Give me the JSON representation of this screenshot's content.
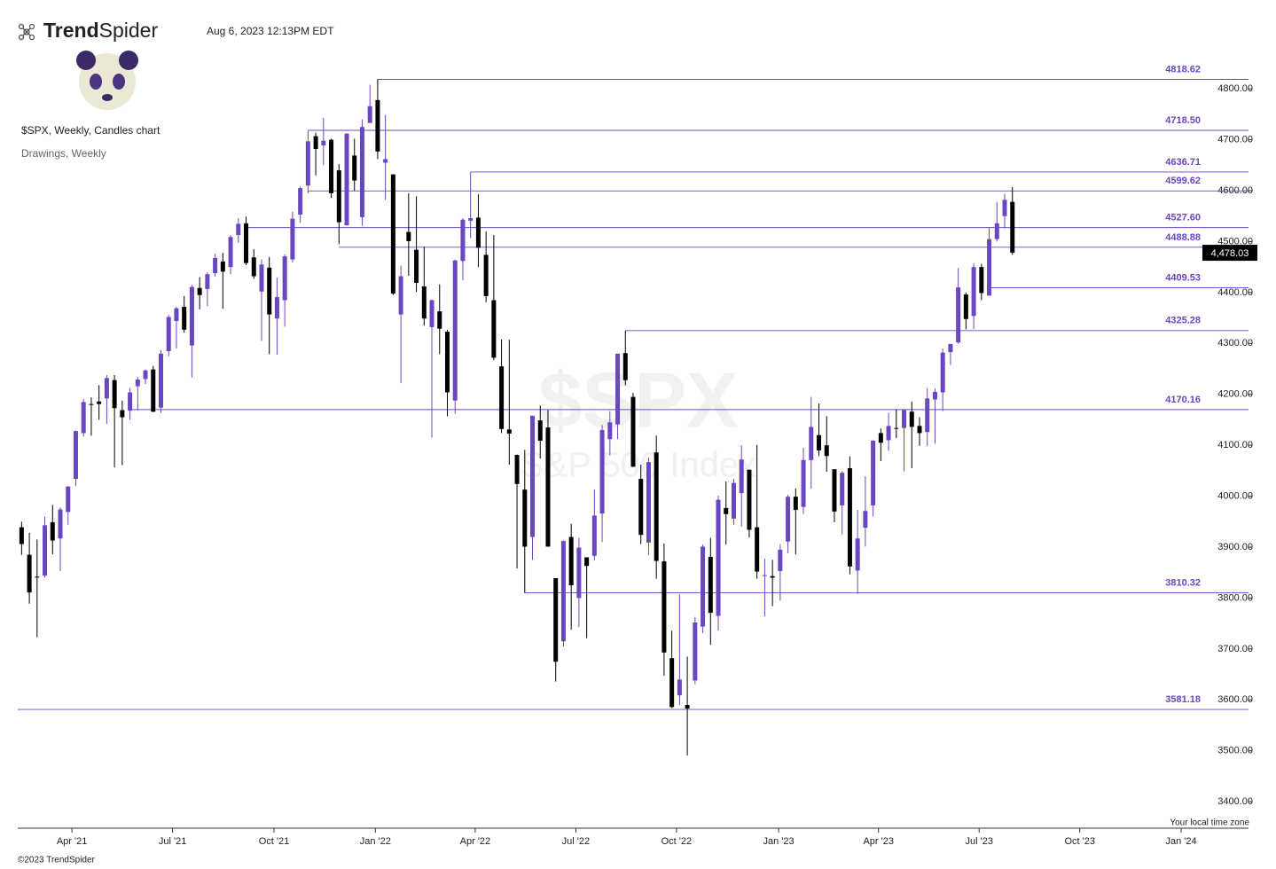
{
  "header": {
    "logo": {
      "bold": "Trend",
      "light": "Spider"
    },
    "timestamp": "Aug 6, 2023 12:13PM EDT",
    "chart_name": "$SPX, Weekly, Candles chart",
    "drawings": "Drawings, Weekly"
  },
  "footer": {
    "copyright": "©2023 TrendSpider",
    "timezone": "Your local time zone"
  },
  "chart_data": {
    "type": "candlestick",
    "watermark": {
      "symbol": "$SPX",
      "name": "S&P 500 Index"
    },
    "categories": [
      null,
      null,
      null,
      null,
      null,
      null,
      null,
      null,
      null,
      null,
      null,
      null,
      null,
      null,
      null,
      null,
      null,
      null,
      null,
      null,
      null,
      null,
      null,
      null,
      null,
      null,
      null,
      null,
      null,
      null,
      null,
      null,
      null,
      null,
      null,
      null,
      null,
      null,
      null,
      null,
      null,
      null,
      null,
      null,
      null,
      null,
      null,
      null,
      null,
      null,
      null,
      null,
      null,
      null,
      null,
      null,
      null,
      null,
      null,
      null,
      null,
      null,
      null,
      null,
      null,
      null,
      null,
      null,
      null,
      null,
      null,
      null,
      null,
      null,
      null,
      null,
      null,
      null,
      null,
      null,
      null,
      null,
      null,
      null,
      null,
      null,
      null,
      null,
      null,
      null,
      null,
      null,
      null,
      null,
      null,
      null,
      null,
      null,
      null,
      null,
      null,
      null,
      null,
      null,
      null,
      null,
      null,
      null,
      null,
      null,
      null,
      null,
      null,
      null,
      null,
      null,
      null,
      null,
      null,
      null,
      null,
      null,
      null,
      null,
      null,
      null,
      null,
      null,
      null
    ],
    "open": [
      3939,
      3885,
      3842,
      3844,
      3949,
      3917,
      3969,
      4034,
      4124,
      4181,
      4186,
      4192,
      4228,
      4169,
      4168,
      4216,
      4230,
      4249,
      4174,
      4285,
      4344,
      4372,
      4296,
      4409,
      4407,
      4438,
      4461,
      4450,
      4513,
      4536,
      4469,
      4402,
      4449,
      4349,
      4385,
      4465,
      4553,
      4610,
      4707,
      4689,
      4700,
      4640,
      4532,
      4669,
      4548,
      4733,
      4778,
      4655,
      4632,
      4357,
      4519,
      4484,
      4412,
      4332,
      4363,
      4323,
      4188,
      4462,
      4541,
      4547,
      4474,
      4385,
      4255,
      4131,
      4081,
      4013,
      3920,
      4149,
      4135,
      3839,
      3715,
      3920,
      3800,
      3880,
      3883,
      3966,
      4112,
      4141,
      4281,
      4195,
      4034,
      3909,
      4086,
      3872,
      3682,
      3609,
      3590,
      3638,
      3744,
      3881,
      3765,
      3977,
      3956,
      4006,
      4052,
      3939,
      3845,
      3843,
      3853,
      3911,
      3999,
      3979,
      4071,
      4120,
      4100,
      4053,
      3982,
      4055,
      3854,
      3938,
      3982,
      4124,
      4110,
      4134,
      4134,
      4166,
      4138,
      4126,
      4190,
      4204,
      4283,
      4302,
      4396,
      4354,
      4450,
      4394,
      4505,
      4550,
      4578
    ],
    "high": [
      3950,
      3928,
      3915,
      3960,
      3983,
      3978,
      4020,
      4129,
      4191,
      4194,
      4218,
      4238,
      4238,
      4188,
      4213,
      4234,
      4249,
      4256,
      4287,
      4356,
      4372,
      4393,
      4415,
      4430,
      4440,
      4476,
      4478,
      4513,
      4546,
      4549,
      4485,
      4465,
      4470,
      4429,
      4475,
      4559,
      4608,
      4718,
      4714,
      4743,
      4702,
      4652,
      4713,
      4702,
      4740,
      4808,
      4819,
      4749,
      4632,
      4453,
      4595,
      4589,
      4490,
      4386,
      4416,
      4327,
      4465,
      4546,
      4637,
      4593,
      4520,
      4513,
      4308,
      4307,
      4082,
      4091,
      4158,
      4178,
      4169,
      3839,
      3913,
      3946,
      3918,
      3880,
      4013,
      4140,
      4167,
      4280,
      4325,
      4203,
      4062,
      4076,
      4119,
      3907,
      3736,
      3807,
      3685,
      3763,
      3905,
      3918,
      4001,
      4029,
      4034,
      4100,
      4052,
      4101,
      3877,
      3875,
      3906,
      4003,
      4015,
      4095,
      4195,
      4182,
      4157,
      4053,
      4049,
      4078,
      3973,
      4039,
      4110,
      4133,
      4164,
      4170,
      4170,
      4186,
      4155,
      4212,
      4212,
      4290,
      4299,
      4448,
      4400,
      4458,
      4456,
      4528,
      4578,
      4594,
      4607
    ],
    "low": [
      3885,
      3789,
      3723,
      3840,
      3886,
      3853,
      3944,
      4020,
      4117,
      4119,
      4150,
      4142,
      4057,
      4061,
      4150,
      4168,
      4220,
      4165,
      4164,
      4275,
      4290,
      4321,
      4233,
      4367,
      4373,
      4431,
      4368,
      4436,
      4498,
      4454,
      4427,
      4305,
      4279,
      4278,
      4333,
      4459,
      4537,
      4595,
      4630,
      4650,
      4586,
      4495,
      4532,
      4600,
      4531,
      4733,
      4662,
      4582,
      4395,
      4222,
      4433,
      4401,
      4335,
      4115,
      4279,
      4157,
      4162,
      4424,
      4507,
      4450,
      4381,
      4267,
      4124,
      4062,
      3858,
      3810,
      3875,
      4074,
      3901,
      3636,
      3705,
      3738,
      3743,
      3721,
      3874,
      3910,
      4080,
      4112,
      4218,
      4057,
      3906,
      3884,
      3838,
      3647,
      3584,
      3590,
      3491,
      3631,
      3731,
      3708,
      3736,
      3905,
      3944,
      3940,
      3919,
      3838,
      3764,
      3784,
      3795,
      3888,
      3886,
      3965,
      4015,
      4079,
      4048,
      3949,
      3925,
      3847,
      3808,
      3901,
      3960,
      4069,
      4089,
      4114,
      4049,
      4055,
      4099,
      4099,
      4103,
      4167,
      4258,
      4299,
      4328,
      4328,
      4385,
      4394,
      4500,
      4526,
      4474
    ],
    "close": [
      3906,
      3811,
      3841,
      3943,
      3913,
      3974,
      4019,
      4128,
      4185,
      4180,
      4181,
      4232,
      4173,
      4155,
      4204,
      4229,
      4247,
      4166,
      4280,
      4352,
      4369,
      4327,
      4411,
      4395,
      4436,
      4468,
      4441,
      4509,
      4535,
      4458,
      4432,
      4455,
      4357,
      4391,
      4471,
      4545,
      4605,
      4697,
      4682,
      4698,
      4595,
      4538,
      4712,
      4620,
      4725,
      4766,
      4677,
      4662,
      4398,
      4432,
      4501,
      4419,
      4349,
      4385,
      4329,
      4204,
      4463,
      4543,
      4546,
      4488,
      4393,
      4272,
      4132,
      4123,
      4024,
      3901,
      4158,
      4109,
      3901,
      3675,
      3912,
      3825,
      3899,
      3863,
      3962,
      4130,
      4145,
      4280,
      4228,
      4058,
      3924,
      4067,
      3873,
      3693,
      3586,
      3640,
      3583,
      3752,
      3901,
      3771,
      3993,
      3965,
      4026,
      4072,
      3934,
      3852,
      3845,
      3840,
      3895,
      3999,
      3973,
      4071,
      4136,
      4090,
      4079,
      3970,
      4046,
      3862,
      3917,
      3971,
      4109,
      4105,
      4138,
      4133,
      4169,
      4136,
      4124,
      4192,
      4205,
      4282,
      4299,
      4410,
      4348,
      4450,
      4399,
      4505,
      4536,
      4582,
      4478.03
    ],
    "up_color": "#6b46c1",
    "down_color": "#000000",
    "last_price": 4478.03,
    "last_price_label": "4,478.03",
    "level_color": "#6b46c1",
    "levels": [
      {
        "value": 4818.62,
        "start": 46
      },
      {
        "value": 4718.5,
        "label": "4718.50",
        "start": 37
      },
      {
        "value": 4636.71,
        "start": 58
      },
      {
        "value": 4599.62,
        "start": 37
      },
      {
        "value": 4527.6,
        "label": "4527.60",
        "start": 28.7
      },
      {
        "value": 4488.88,
        "start": 41
      },
      {
        "value": 4409.53,
        "start": 125
      },
      {
        "value": 4325.28,
        "start": 78
      },
      {
        "value": 4170.16,
        "start": 14
      },
      {
        "value": 3810.32,
        "start": 65
      },
      {
        "value": 3581.18,
        "start": -0.5
      }
    ],
    "xlim": [
      -0.5,
      158.5
    ],
    "xticks": [
      {
        "value": 6.5,
        "label": "Apr '21"
      },
      {
        "value": 19.5,
        "label": "Jul '21"
      },
      {
        "value": 32.6,
        "label": "Oct '21"
      },
      {
        "value": 45.7,
        "label": "Jan '22"
      },
      {
        "value": 58.6,
        "label": "Apr '22"
      },
      {
        "value": 71.6,
        "label": "Jul '22"
      },
      {
        "value": 84.6,
        "label": "Oct '22"
      },
      {
        "value": 97.8,
        "label": "Jan '23"
      },
      {
        "value": 110.7,
        "label": "Apr '23"
      },
      {
        "value": 123.7,
        "label": "Jul '23"
      },
      {
        "value": 136.7,
        "label": "Oct '23"
      },
      {
        "value": 149.8,
        "label": "Jan '24"
      }
    ],
    "ylim": [
      3348,
      4870
    ],
    "yticks": [
      {
        "value": 3400,
        "label": "3400.00"
      },
      {
        "value": 3500,
        "label": "3500.00"
      },
      {
        "value": 3600,
        "label": "3600.00"
      },
      {
        "value": 3700,
        "label": "3700.00"
      },
      {
        "value": 3800,
        "label": "3800.00"
      },
      {
        "value": 3900,
        "label": "3900.00"
      },
      {
        "value": 4000,
        "label": "4000.00"
      },
      {
        "value": 4100,
        "label": "4100.00"
      },
      {
        "value": 4200,
        "label": "4200.00"
      },
      {
        "value": 4300,
        "label": "4300.00"
      },
      {
        "value": 4400,
        "label": "4400.00"
      },
      {
        "value": 4500,
        "label": "4500.00"
      },
      {
        "value": 4600,
        "label": "4600.00"
      },
      {
        "value": 4700,
        "label": "4700.00"
      },
      {
        "value": 4800,
        "label": "4800.00"
      }
    ]
  }
}
